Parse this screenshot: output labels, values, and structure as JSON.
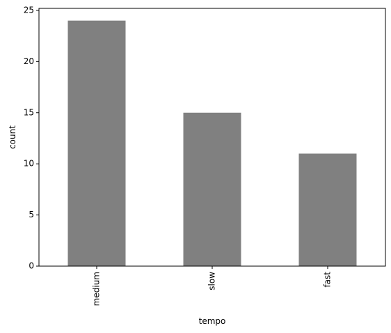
{
  "chart_data": {
    "type": "bar",
    "categories": [
      "medium",
      "slow",
      "fast"
    ],
    "values": [
      24,
      15,
      11
    ],
    "color": "#808080",
    "xlabel": "tempo",
    "ylabel": "count",
    "ylim": [
      0,
      25.2
    ],
    "yticks": [
      0,
      5,
      10,
      15,
      20,
      25
    ]
  }
}
